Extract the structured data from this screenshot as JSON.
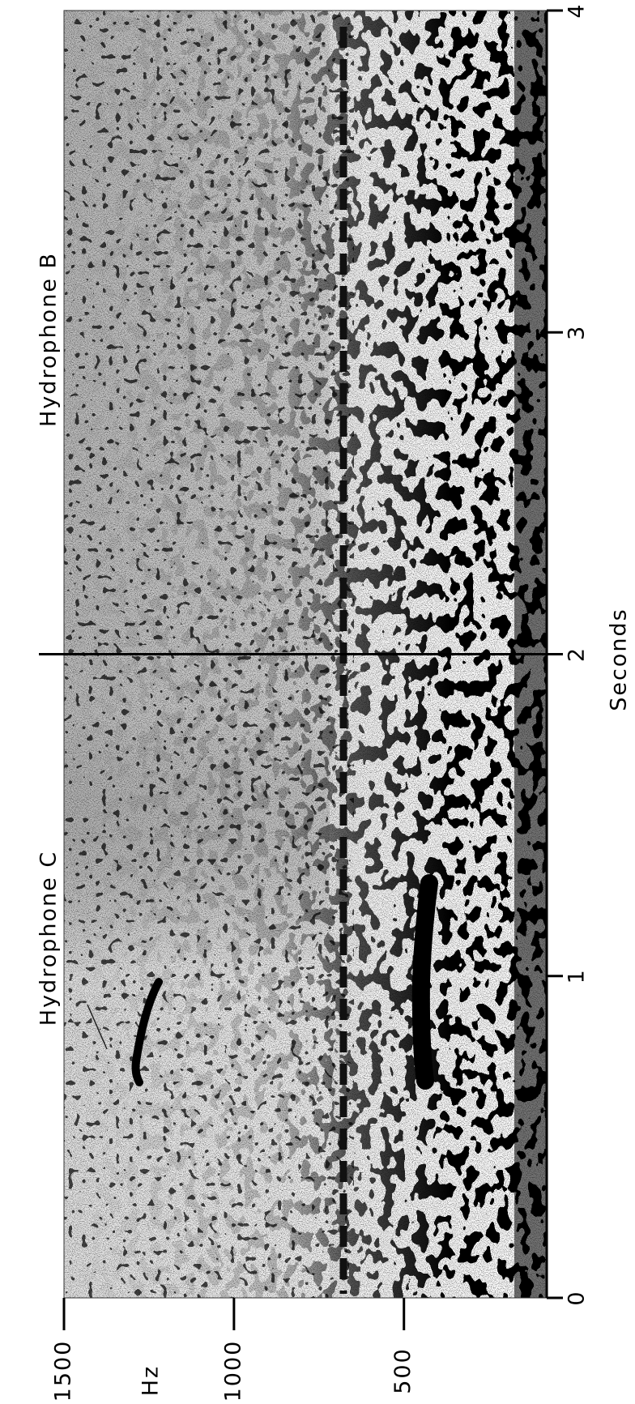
{
  "chart_data": {
    "type": "spectrogram",
    "x_label": "Seconds",
    "y_label": "Hz",
    "annotations": [
      "Hydrophone C",
      "Hydrophone B"
    ],
    "xlim": [
      0,
      4
    ],
    "xticks": [
      0,
      1,
      2,
      3,
      4
    ],
    "ylim": [
      80,
      1500
    ],
    "yticks": [
      500,
      1000,
      1500
    ]
  }
}
